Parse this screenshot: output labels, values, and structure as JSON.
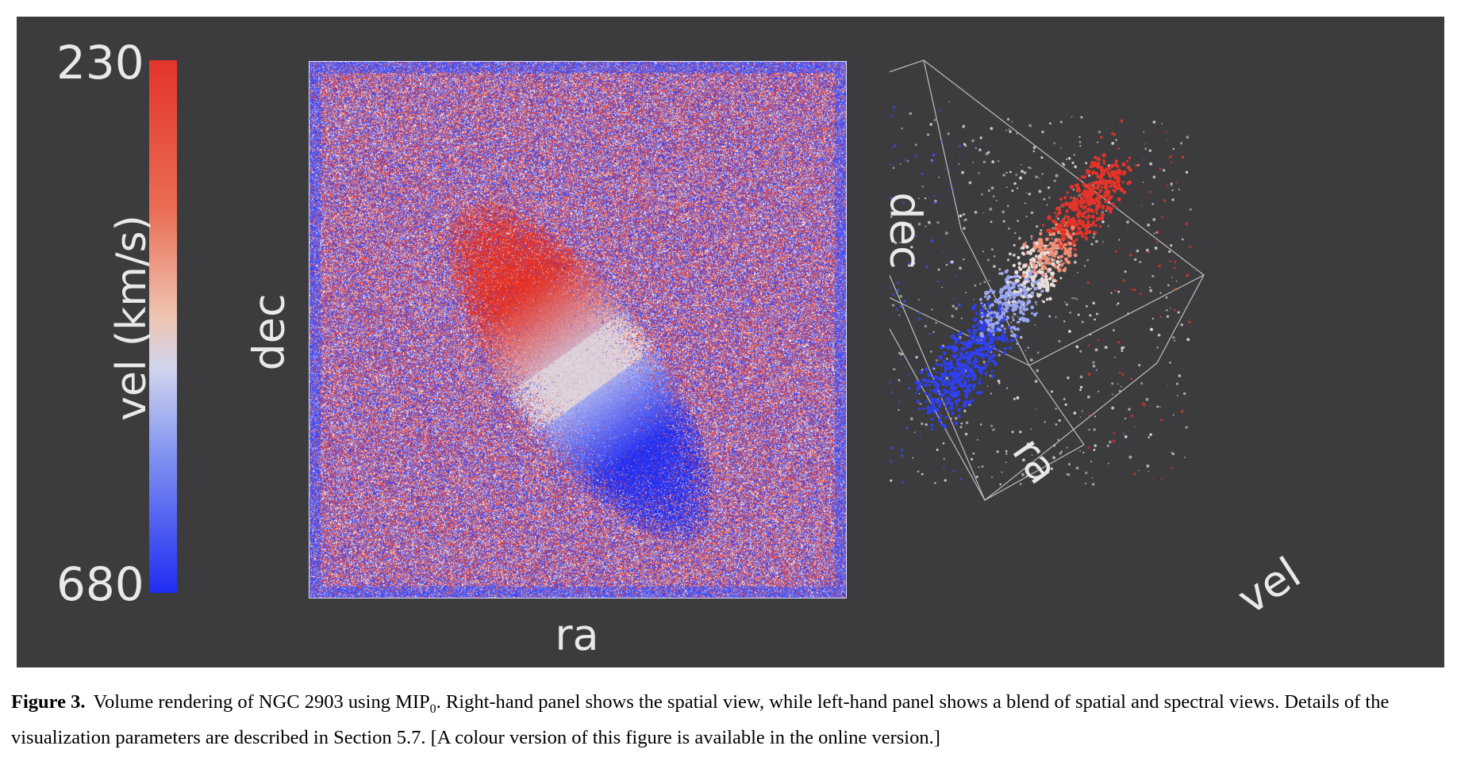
{
  "figure": {
    "colorbar": {
      "title": "vel (km/s)",
      "top_value": "230",
      "bottom_value": "680",
      "colors": [
        "#e4342a",
        "#efc4b0",
        "#1f2df2"
      ]
    },
    "panel_2d": {
      "xlabel": "ra",
      "ylabel": "dec"
    },
    "panel_3d": {
      "axis_dec": "dec",
      "axis_ra": "ra",
      "axis_vel": "vel"
    },
    "background_color": "#3c3c3e"
  },
  "caption": {
    "label": "Figure 3.",
    "text_part1": "Volume rendering of NGC 2903 using MIP",
    "subscript": "0",
    "text_part2": ". Right-hand panel shows the spatial view, while left-hand panel shows a blend of spatial and spectral views. Details of the visualization parameters are described in Section 5.7. [A colour version of this figure is available in the online version.]"
  }
}
